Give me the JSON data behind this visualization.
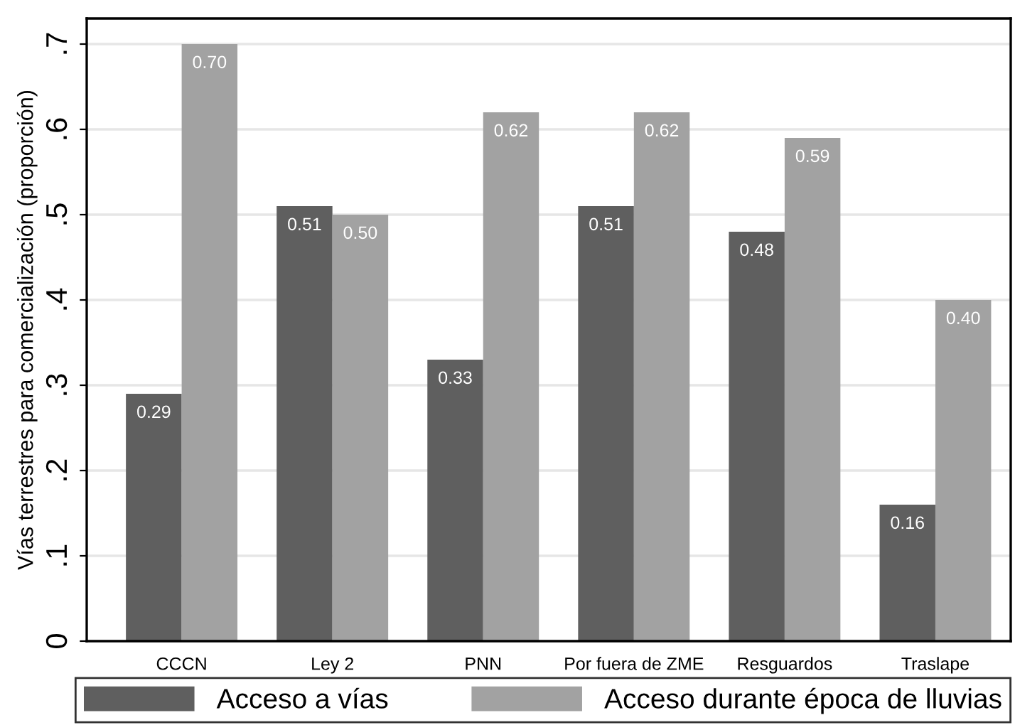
{
  "chart_data": {
    "type": "bar",
    "ylabel": "Vías terrestres para comercialización (proporción)",
    "categories": [
      "CCCN",
      "Ley 2",
      "PNN",
      "Por fuera de ZME",
      "Resguardos",
      "Traslape"
    ],
    "series": [
      {
        "name": "Acceso a vías",
        "color": "#5f5f5f",
        "values": [
          0.29,
          0.51,
          0.33,
          0.51,
          0.48,
          0.16
        ],
        "value_labels": [
          "0.29",
          "0.51",
          "0.33",
          "0.51",
          "0.48",
          "0.16"
        ]
      },
      {
        "name": "Acceso durante época de lluvias",
        "color": "#a2a2a2",
        "values": [
          0.7,
          0.5,
          0.62,
          0.62,
          0.59,
          0.4
        ],
        "value_labels": [
          "0.70",
          "0.50",
          "0.62",
          "0.62",
          "0.59",
          "0.40"
        ]
      }
    ],
    "ylim": [
      0,
      0.73
    ],
    "yticks": [
      0,
      {
        "value": 0.1,
        "label": ".1"
      },
      {
        "value": 0.2,
        "label": ".2"
      },
      {
        "value": 0.3,
        "label": ".3"
      },
      {
        "value": 0.4,
        "label": ".4"
      },
      {
        "value": 0.5,
        "label": ".5"
      },
      {
        "value": 0.6,
        "label": ".6"
      },
      {
        "value": 0.7,
        "label": ".7"
      }
    ],
    "grid": "y",
    "legend": "bottom"
  }
}
